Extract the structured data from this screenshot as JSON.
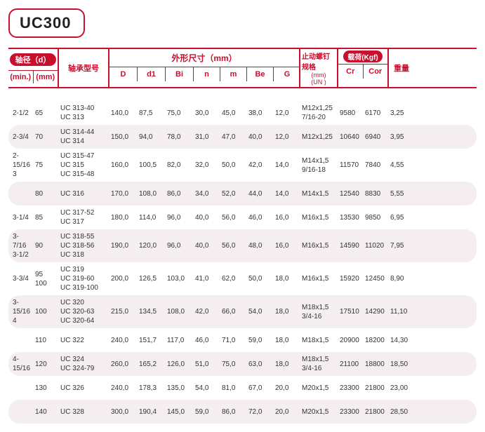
{
  "title": "UC300",
  "header": {
    "shaft_label": "轴径（d）",
    "min_label": "(min.)",
    "mm_label": "(mm)",
    "bearing_model": "轴承型号",
    "dims_label": "外形尺寸（mm）",
    "D": "D",
    "d1": "d1",
    "Bi": "Bi",
    "n": "n",
    "m": "m",
    "Be": "Be",
    "G": "G",
    "bolt_label": "止动螺钉规格",
    "bolt_sub1": "(mm)",
    "bolt_sub2": "(UN )",
    "load_label": "载荷(Kgf)",
    "Cr": "Cr",
    "Cor": "Cor",
    "weight": "重量"
  },
  "rows": [
    {
      "min": "2-1/2",
      "mm": "65",
      "model": "UC 313-40\nUC 313",
      "D": "140,0",
      "d1": "87,5",
      "Bi": "75,0",
      "n": "30,0",
      "m": "45,0",
      "Be": "38,0",
      "G": "12,0",
      "bolt": "M12x1,25\n7/16-20",
      "Cr": "9580",
      "Cor": "6170",
      "wt": "3,25"
    },
    {
      "min": "2-3/4",
      "mm": "70",
      "model": "UC 314-44\nUC 314",
      "D": "150,0",
      "d1": "94,0",
      "Bi": "78,0",
      "n": "31,0",
      "m": "47,0",
      "Be": "40,0",
      "G": "12,0",
      "bolt": "M12x1,25",
      "Cr": "10640",
      "Cor": "6940",
      "wt": "3,95"
    },
    {
      "min": "2-15/16\n3",
      "mm": "75",
      "model": "UC 315-47\nUC 315\nUC 315-48",
      "D": "160,0",
      "d1": "100,5",
      "Bi": "82,0",
      "n": "32,0",
      "m": "50,0",
      "Be": "42,0",
      "G": "14,0",
      "bolt": "M14x1,5\n9/16-18",
      "Cr": "11570",
      "Cor": "7840",
      "wt": "4,55"
    },
    {
      "min": "",
      "mm": "80",
      "model": "UC 316",
      "D": "170,0",
      "d1": "108,0",
      "Bi": "86,0",
      "n": "34,0",
      "m": "52,0",
      "Be": "44,0",
      "G": "14,0",
      "bolt": "M14x1,5",
      "Cr": "12540",
      "Cor": "8830",
      "wt": "5,55"
    },
    {
      "min": "3-1/4",
      "mm": "85",
      "model": "UC 317-52\nUC 317",
      "D": "180,0",
      "d1": "114,0",
      "Bi": "96,0",
      "n": "40,0",
      "m": "56,0",
      "Be": "46,0",
      "G": "16,0",
      "bolt": "M16x1,5",
      "Cr": "13530",
      "Cor": "9850",
      "wt": "6,95"
    },
    {
      "min": "3-7/16\n3-1/2",
      "mm": "90",
      "model": "UC 318-55\nUC 318-56\nUC 318",
      "D": "190,0",
      "d1": "120,0",
      "Bi": "96,0",
      "n": "40,0",
      "m": "56,0",
      "Be": "48,0",
      "G": "16,0",
      "bolt": "M16x1,5",
      "Cr": "14590",
      "Cor": "11020",
      "wt": "7,95"
    },
    {
      "min": "3-3/4",
      "mm": "95\n100",
      "model": "UC 319\nUC 319-60\nUC 319-100",
      "D": "200,0",
      "d1": "126,5",
      "Bi": "103,0",
      "n": "41,0",
      "m": "62,0",
      "Be": "50,0",
      "G": "18,0",
      "bolt": "M16x1,5",
      "Cr": "15920",
      "Cor": "12450",
      "wt": "8,90"
    },
    {
      "min": "3-15/16\n4",
      "mm": "100",
      "model": "UC 320\nUC 320-63\nUC 320-64",
      "D": "215,0",
      "d1": "134,5",
      "Bi": "108,0",
      "n": "42,0",
      "m": "66,0",
      "Be": "54,0",
      "G": "18,0",
      "bolt": "M18x1,5\n3/4-16",
      "Cr": "17510",
      "Cor": "14290",
      "wt": "11,10"
    },
    {
      "min": "",
      "mm": "110",
      "model": "UC 322",
      "D": "240,0",
      "d1": "151,7",
      "Bi": "117,0",
      "n": "46,0",
      "m": "71,0",
      "Be": "59,0",
      "G": "18,0",
      "bolt": "M18x1,5",
      "Cr": "20900",
      "Cor": "18200",
      "wt": "14,30"
    },
    {
      "min": "4-15/16",
      "mm": "120",
      "model": "UC 324\nUC 324-79",
      "D": "260,0",
      "d1": "165,2",
      "Bi": "126,0",
      "n": "51,0",
      "m": "75,0",
      "Be": "63,0",
      "G": "18,0",
      "bolt": "M18x1,5\n3/4-16",
      "Cr": "21100",
      "Cor": "18800",
      "wt": "18,50"
    },
    {
      "min": "",
      "mm": "130",
      "model": "UC 326",
      "D": "240,0",
      "d1": "178,3",
      "Bi": "135,0",
      "n": "54,0",
      "m": "81,0",
      "Be": "67,0",
      "G": "20,0",
      "bolt": "M20x1,5",
      "Cr": "23300",
      "Cor": "21800",
      "wt": "23,00"
    },
    {
      "min": "",
      "mm": "140",
      "model": "UC 328",
      "D": "300,0",
      "d1": "190,4",
      "Bi": "145,0",
      "n": "59,0",
      "m": "86,0",
      "Be": "72,0",
      "G": "20,0",
      "bolt": "M20x1,5",
      "Cr": "23300",
      "Cor": "21800",
      "wt": "28,50"
    }
  ]
}
